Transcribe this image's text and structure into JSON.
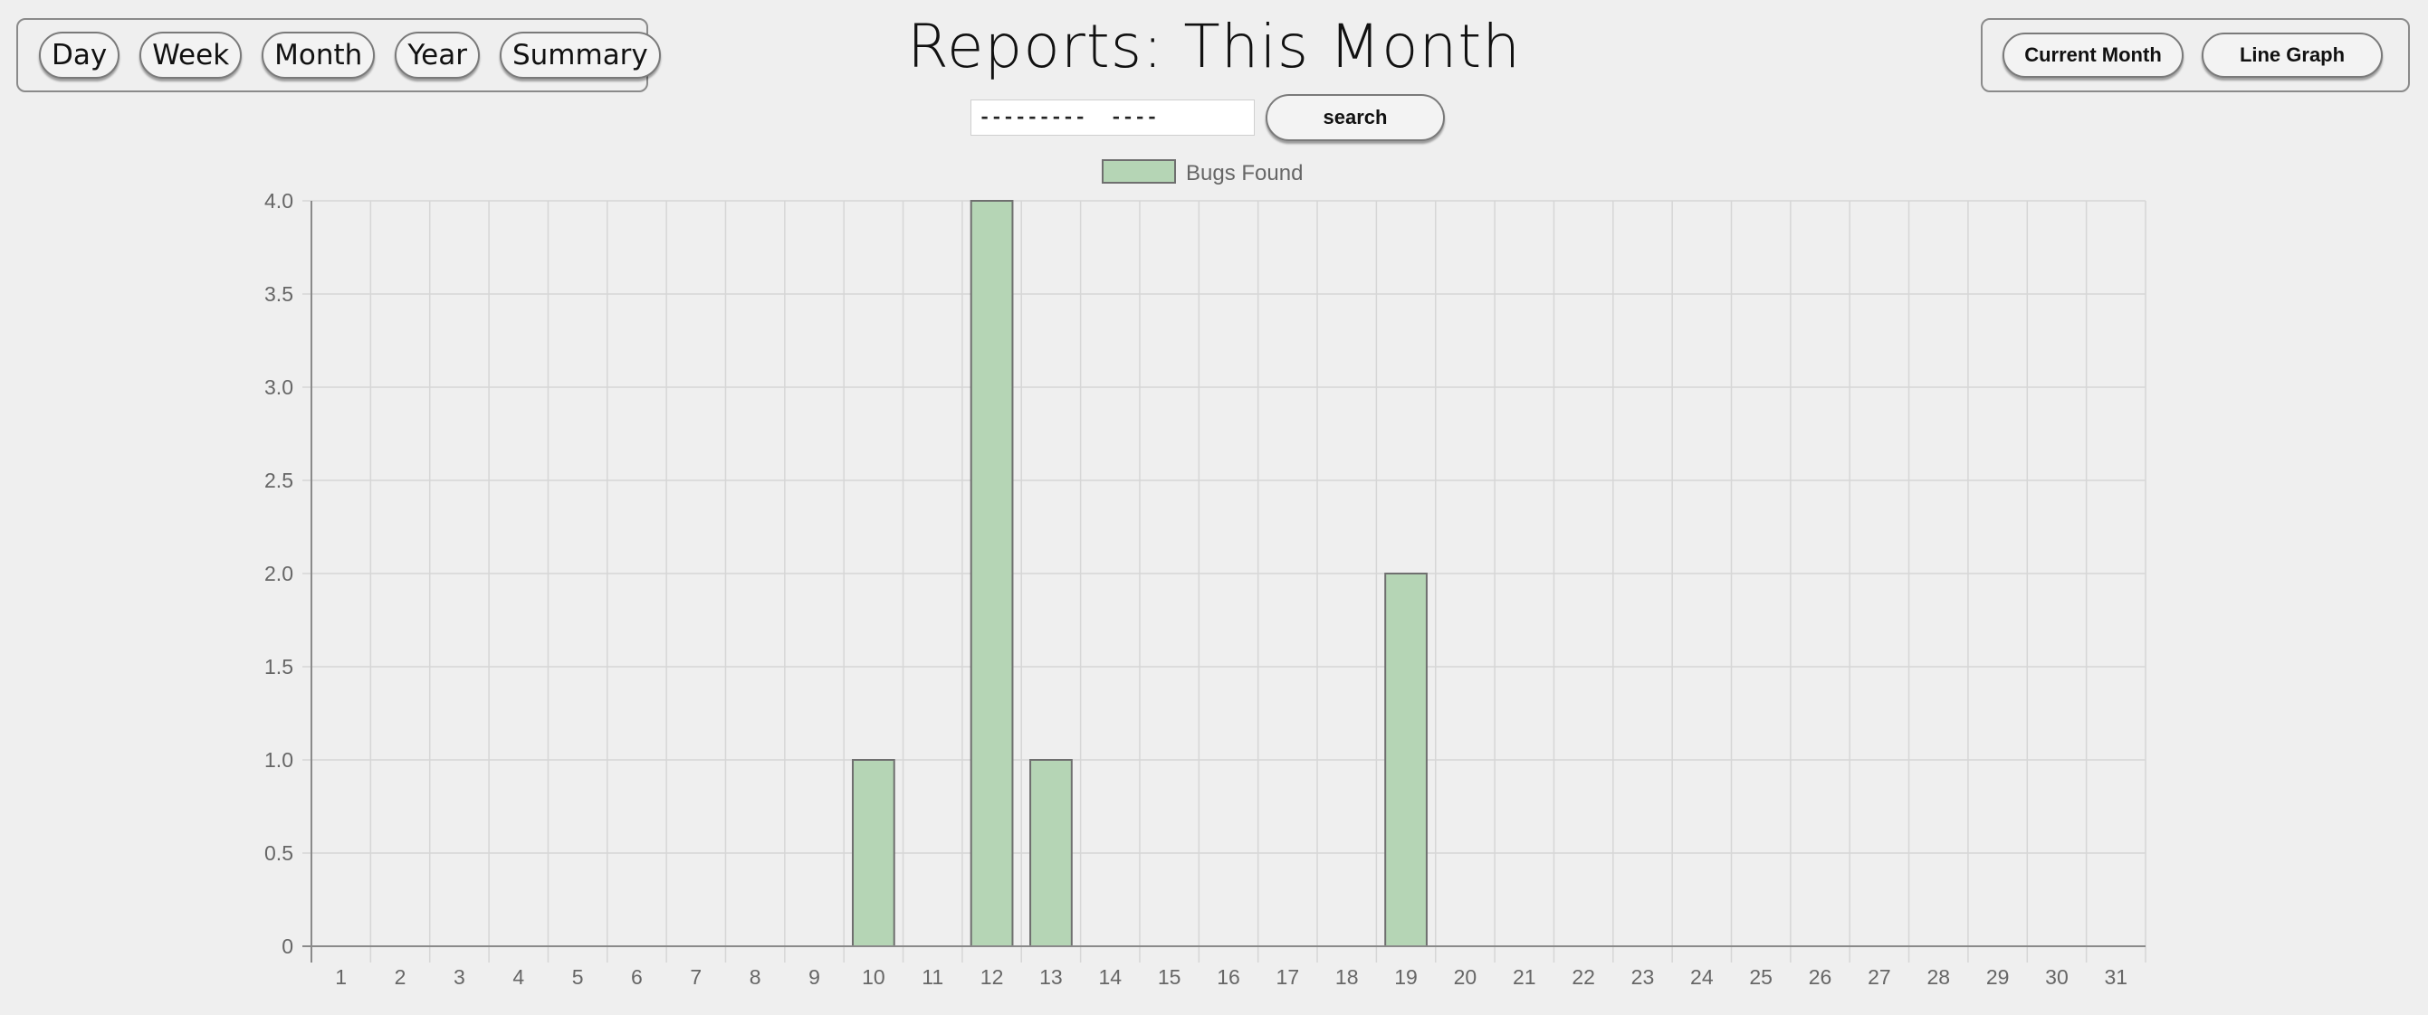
{
  "nav": {
    "items": [
      {
        "label": "Day"
      },
      {
        "label": "Week"
      },
      {
        "label": "Month"
      },
      {
        "label": "Year"
      },
      {
        "label": "Summary"
      }
    ]
  },
  "header": {
    "title": "Reports: This Month"
  },
  "toolbar": {
    "current_month_label": "Current Month",
    "line_graph_label": "Line Graph"
  },
  "search": {
    "value": "---------  ----",
    "button_label": "search"
  },
  "colors": {
    "bar_fill": "#b5d5b5",
    "bar_stroke": "#6f6f6f",
    "grid": "#d6d6d6",
    "axis": "#8a8a8a"
  },
  "chart_data": {
    "type": "bar",
    "categories": [
      "1",
      "2",
      "3",
      "4",
      "5",
      "6",
      "7",
      "8",
      "9",
      "10",
      "11",
      "12",
      "13",
      "14",
      "15",
      "16",
      "17",
      "18",
      "19",
      "20",
      "21",
      "22",
      "23",
      "24",
      "25",
      "26",
      "27",
      "28",
      "29",
      "30",
      "31"
    ],
    "series": [
      {
        "name": "Bugs Found",
        "values": [
          0,
          0,
          0,
          0,
          0,
          0,
          0,
          0,
          0,
          1,
          0,
          4,
          1,
          0,
          0,
          0,
          0,
          0,
          2,
          0,
          0,
          0,
          0,
          0,
          0,
          0,
          0,
          0,
          0,
          0,
          0
        ]
      }
    ],
    "yticks": [
      "0",
      "0.5",
      "1.0",
      "1.5",
      "2.0",
      "2.5",
      "3.0",
      "3.5",
      "4.0"
    ],
    "ylim": [
      0,
      4
    ],
    "grid": true,
    "legend": "top-center"
  }
}
